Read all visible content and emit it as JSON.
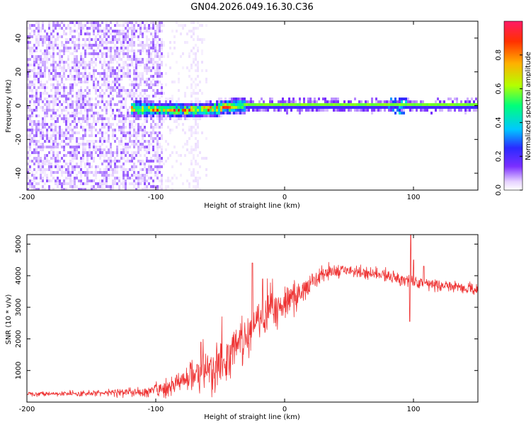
{
  "figure_title": "GN04.2026.049.16.30.C36",
  "chart_data": [
    {
      "type": "heatmap",
      "title": "GN04.2026.049.16.30.C36",
      "xlabel": "Height of straight line (km)",
      "ylabel": "Frequency (Hz)",
      "xlim": [
        -200,
        150
      ],
      "ylim": [
        -50,
        50
      ],
      "xticks": [
        -200,
        -100,
        0,
        100
      ],
      "xtick_labels": [
        "-200",
        "-100",
        "0",
        "100"
      ],
      "yticks": [
        -40,
        -20,
        0,
        20,
        40
      ],
      "ytick_labels": [
        "-40",
        "-20",
        "0",
        "20",
        "40"
      ],
      "colorbar": {
        "label": "Normalized spectral amplitude",
        "range": [
          0,
          1
        ],
        "ticks": [
          0.0,
          0.2,
          0.4,
          0.6,
          0.8
        ],
        "tick_labels": [
          "0.0",
          "0.2",
          "0.4",
          "0.6",
          "0.8"
        ],
        "colormap": [
          "#ffffff",
          "#e6d2ff",
          "#7b2fff",
          "#2a2aff",
          "#00c8ff",
          "#00ff7a",
          "#b4ff00",
          "#ffb000",
          "#ff3000",
          "#ff1a66"
        ]
      },
      "features": {
        "noise_region_km": [
          -200,
          -95
        ],
        "scatter_region_km": [
          -95,
          -60
        ],
        "signal_onset_km": -120,
        "carrier_frequency_hz": 0,
        "drift_hz_by_height": [
          [
            -120,
            -1.5
          ],
          [
            -80,
            -3
          ],
          [
            -55,
            -2
          ],
          [
            -35,
            0
          ],
          [
            0,
            0
          ],
          [
            150,
            0
          ]
        ]
      }
    },
    {
      "type": "line",
      "series": [
        {
          "name": "SNR",
          "color": "#ee3333"
        }
      ],
      "xlabel": "Height of straight line (km)",
      "ylabel": "SNR (10 * v/v)",
      "xlim": [
        -200,
        150
      ],
      "ylim": [
        0,
        5300
      ],
      "xticks": [
        -200,
        -100,
        0,
        100
      ],
      "xtick_labels": [
        "-200",
        "-100",
        "0",
        "100"
      ],
      "yticks": [
        1000,
        2000,
        3000,
        4000,
        5000
      ],
      "ytick_labels": [
        "1000",
        "2000",
        "3000",
        "4000",
        "5000"
      ],
      "mean_profile": [
        [
          -200,
          250
        ],
        [
          -150,
          280
        ],
        [
          -110,
          330
        ],
        [
          -90,
          450
        ],
        [
          -70,
          900
        ],
        [
          -55,
          1000
        ],
        [
          -45,
          1300
        ],
        [
          -35,
          1800
        ],
        [
          -25,
          2400
        ],
        [
          -15,
          2800
        ],
        [
          0,
          3100
        ],
        [
          10,
          3350
        ],
        [
          20,
          3800
        ],
        [
          30,
          4050
        ],
        [
          40,
          4150
        ],
        [
          50,
          4150
        ],
        [
          70,
          4050
        ],
        [
          90,
          3900
        ],
        [
          110,
          3750
        ],
        [
          130,
          3650
        ],
        [
          150,
          3550
        ]
      ],
      "noise_amplitude": [
        [
          -200,
          80
        ],
        [
          -150,
          100
        ],
        [
          -100,
          200
        ],
        [
          -75,
          550
        ],
        [
          -50,
          800
        ],
        [
          -30,
          800
        ],
        [
          0,
          650
        ],
        [
          20,
          400
        ],
        [
          40,
          260
        ],
        [
          100,
          220
        ],
        [
          150,
          200
        ]
      ],
      "spikes": [
        [
          -65,
          1900
        ],
        [
          -25,
          4400
        ],
        [
          -17,
          3900
        ],
        [
          97,
          2550
        ],
        [
          98,
          5300
        ],
        [
          100,
          4500
        ],
        [
          108,
          4300
        ]
      ]
    }
  ]
}
